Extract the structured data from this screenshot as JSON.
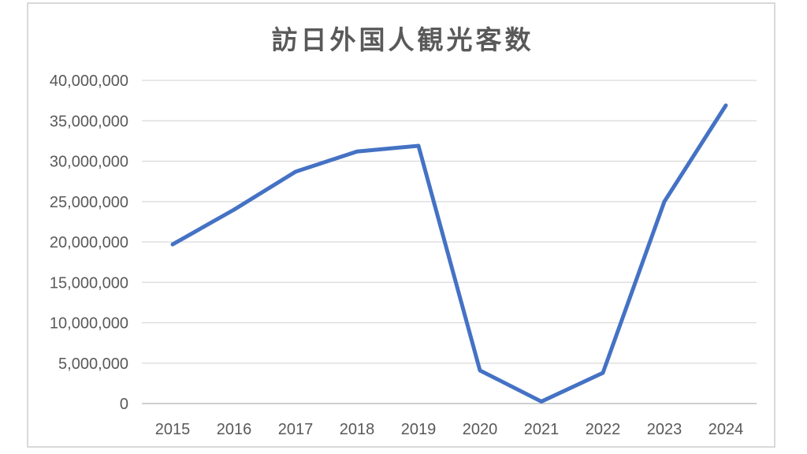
{
  "chart_data": {
    "type": "line",
    "title": "訪日外国人観光客数",
    "categories": [
      "2015",
      "2016",
      "2017",
      "2018",
      "2019",
      "2020",
      "2021",
      "2022",
      "2023",
      "2024"
    ],
    "series": [
      {
        "name": "訪日外国人観光客数",
        "values": [
          19700000,
          24000000,
          28700000,
          31200000,
          31900000,
          4100000,
          250000,
          3800000,
          25000000,
          36900000
        ]
      }
    ],
    "xlabel": "",
    "ylabel": "",
    "ylim": [
      0,
      40000000
    ],
    "ytick_step": 5000000,
    "ytick_labels": [
      "0",
      "5,000,000",
      "10,000,000",
      "15,000,000",
      "20,000,000",
      "25,000,000",
      "30,000,000",
      "35,000,000",
      "40,000,000"
    ],
    "grid": "horizontal-only",
    "legend": "none",
    "colors": {
      "line": "#4472C4",
      "gridline": "#d9d9d9",
      "zero_axis": "#bfbfbf",
      "text": "#595959",
      "frame_border": "#d9d9d9",
      "background": "#ffffff"
    }
  }
}
